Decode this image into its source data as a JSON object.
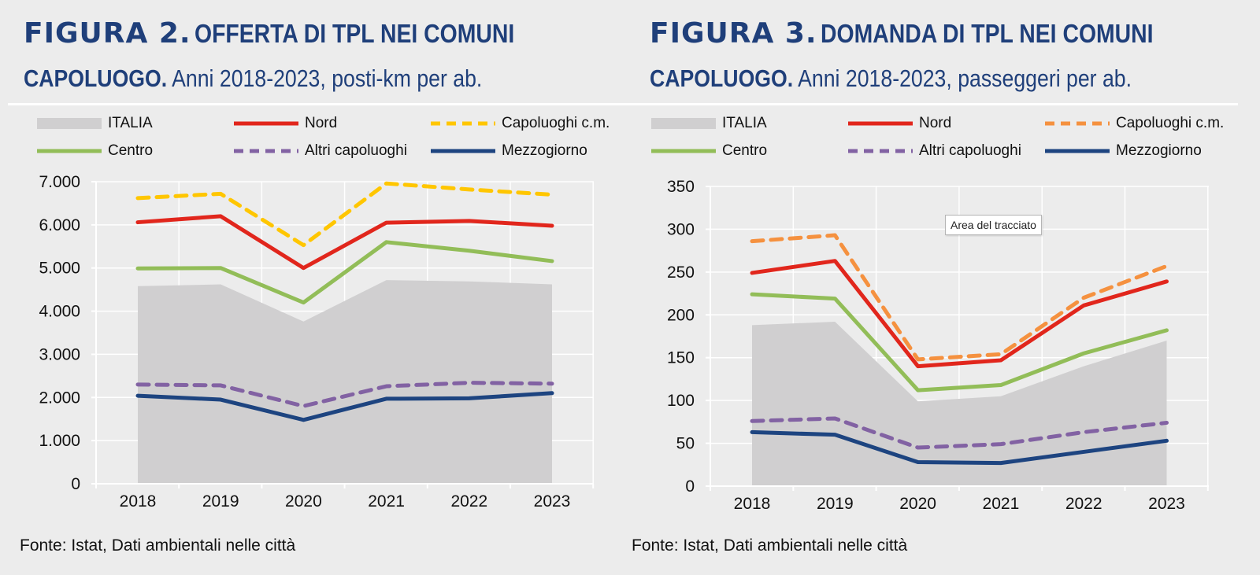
{
  "source": "Fonte: Istat, Dati ambientali nelle città",
  "tooltip": "Area del tracciato",
  "styles": {
    "ITALIA": "#d0cfd0",
    "Nord": "#e1261c",
    "Centro": "#92bd58",
    "Altri capoluoghi": "#8262a3",
    "Mezzogiorno": "#1d4480",
    "Capoluoghi c.m. (fig2)": "#ffc600",
    "Capoluoghi c.m. (fig3)": "#f5913f",
    "grid": "#ffffff"
  },
  "chart_data": [
    {
      "type": "line",
      "figure_label": "FIGURA 2.",
      "title": "OFFERTA DI TPL NEI COMUNI",
      "title_line2_bold": "CAPOLUOGO.",
      "subtitle": "Anni 2018-2023, posti-km per ab.",
      "x": [
        "2018",
        "2019",
        "2020",
        "2021",
        "2022",
        "2023"
      ],
      "ylim": [
        0,
        7000
      ],
      "yticks": [
        "0",
        "1.000",
        "2.000",
        "3.000",
        "4.000",
        "5.000",
        "6.000",
        "7.000"
      ],
      "ytick_values": [
        0,
        1000,
        2000,
        3000,
        4000,
        5000,
        6000,
        7000
      ],
      "grid": true,
      "legend_position": "top",
      "series": [
        {
          "name": "ITALIA",
          "kind": "area",
          "values": [
            4580,
            4620,
            3760,
            4720,
            4690,
            4620
          ]
        },
        {
          "name": "Nord",
          "kind": "line",
          "values": [
            6060,
            6200,
            5000,
            6050,
            6090,
            5980
          ]
        },
        {
          "name": "Capoluoghi c.m.",
          "kind": "dashed",
          "values": [
            6620,
            6720,
            5530,
            6960,
            6820,
            6700
          ]
        },
        {
          "name": "Centro",
          "kind": "line",
          "values": [
            4990,
            5000,
            4200,
            5600,
            5400,
            5160
          ]
        },
        {
          "name": "Altri capoluoghi",
          "kind": "dashed",
          "values": [
            2300,
            2280,
            1800,
            2260,
            2340,
            2320
          ]
        },
        {
          "name": "Mezzogiorno",
          "kind": "line",
          "values": [
            2040,
            1950,
            1480,
            1970,
            1980,
            2100
          ]
        }
      ]
    },
    {
      "type": "line",
      "figure_label": "FIGURA 3.",
      "title": "DOMANDA DI TPL NEI COMUNI",
      "title_line2_bold": "CAPOLUOGO.",
      "subtitle": "Anni 2018-2023, passeggeri per ab.",
      "x": [
        "2018",
        "2019",
        "2020",
        "2021",
        "2022",
        "2023"
      ],
      "ylim": [
        0,
        350
      ],
      "yticks": [
        "0",
        "50",
        "100",
        "150",
        "200",
        "250",
        "300",
        "350"
      ],
      "ytick_values": [
        0,
        50,
        100,
        150,
        200,
        250,
        300,
        350
      ],
      "grid": true,
      "legend_position": "top",
      "series": [
        {
          "name": "ITALIA",
          "kind": "area",
          "values": [
            188,
            192,
            99,
            105,
            140,
            170
          ]
        },
        {
          "name": "Nord",
          "kind": "line",
          "values": [
            249,
            263,
            140,
            147,
            211,
            239
          ]
        },
        {
          "name": "Capoluoghi c.m.",
          "kind": "dashed",
          "values": [
            286,
            293,
            148,
            154,
            220,
            257
          ]
        },
        {
          "name": "Centro",
          "kind": "line",
          "values": [
            224,
            219,
            112,
            118,
            155,
            182
          ]
        },
        {
          "name": "Altri capoluoghi",
          "kind": "dashed",
          "values": [
            76,
            79,
            45,
            49,
            63,
            74
          ]
        },
        {
          "name": "Mezzogiorno",
          "kind": "line",
          "values": [
            63,
            60,
            28,
            27,
            40,
            53
          ]
        }
      ]
    }
  ]
}
